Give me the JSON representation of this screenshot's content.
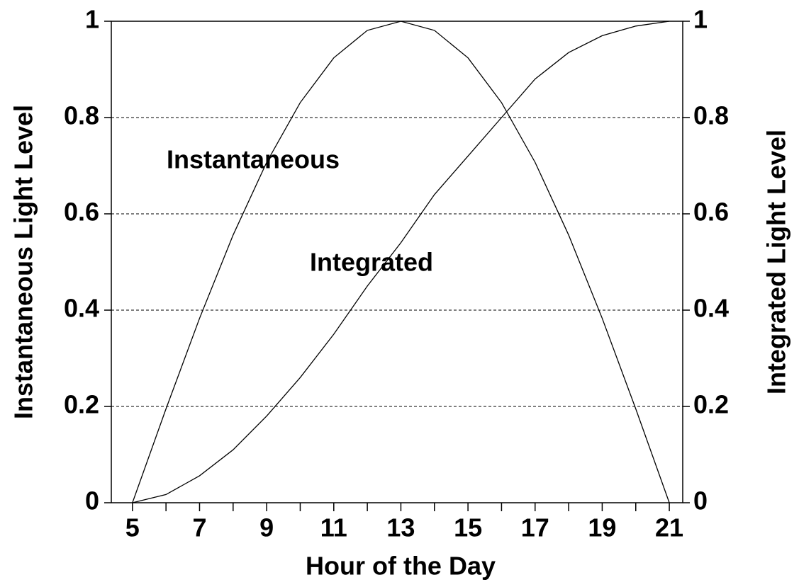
{
  "chart_data": {
    "type": "line",
    "xlabel": "Hour of the Day",
    "ylabel": "Instantaneous Light Level",
    "y2label": "Integrated Light Level",
    "x": [
      5,
      6,
      7,
      8,
      9,
      10,
      11,
      12,
      13,
      14,
      15,
      16,
      17,
      18,
      19,
      20,
      21
    ],
    "series": [
      {
        "name": "Instantaneous",
        "color": "#000000",
        "axis": "y",
        "values": [
          0,
          0.195,
          0.383,
          0.556,
          0.707,
          0.831,
          0.924,
          0.981,
          1,
          0.981,
          0.924,
          0.831,
          0.707,
          0.556,
          0.383,
          0.195,
          0
        ]
      },
      {
        "name": "Integrated",
        "color": "#000000",
        "axis": "y2",
        "values": [
          0,
          0.017,
          0.056,
          0.11,
          0.18,
          0.26,
          0.35,
          0.45,
          0.54,
          0.64,
          0.72,
          0.8,
          0.88,
          0.935,
          0.97,
          0.99,
          1
        ]
      }
    ],
    "xlim": [
      4.37,
      21.4
    ],
    "xticks": [
      5,
      7,
      9,
      11,
      13,
      15,
      17,
      19,
      21
    ],
    "xminor_ticks": [
      6,
      8,
      10,
      12,
      14,
      16,
      18,
      20
    ],
    "ylim": [
      0,
      1
    ],
    "yticks": [
      0,
      0.2,
      0.4,
      0.6,
      0.8,
      1
    ],
    "y2lim": [
      0,
      1
    ],
    "y2ticks": [
      0,
      0.2,
      0.4,
      0.6,
      0.8,
      1
    ],
    "grid": true
  }
}
